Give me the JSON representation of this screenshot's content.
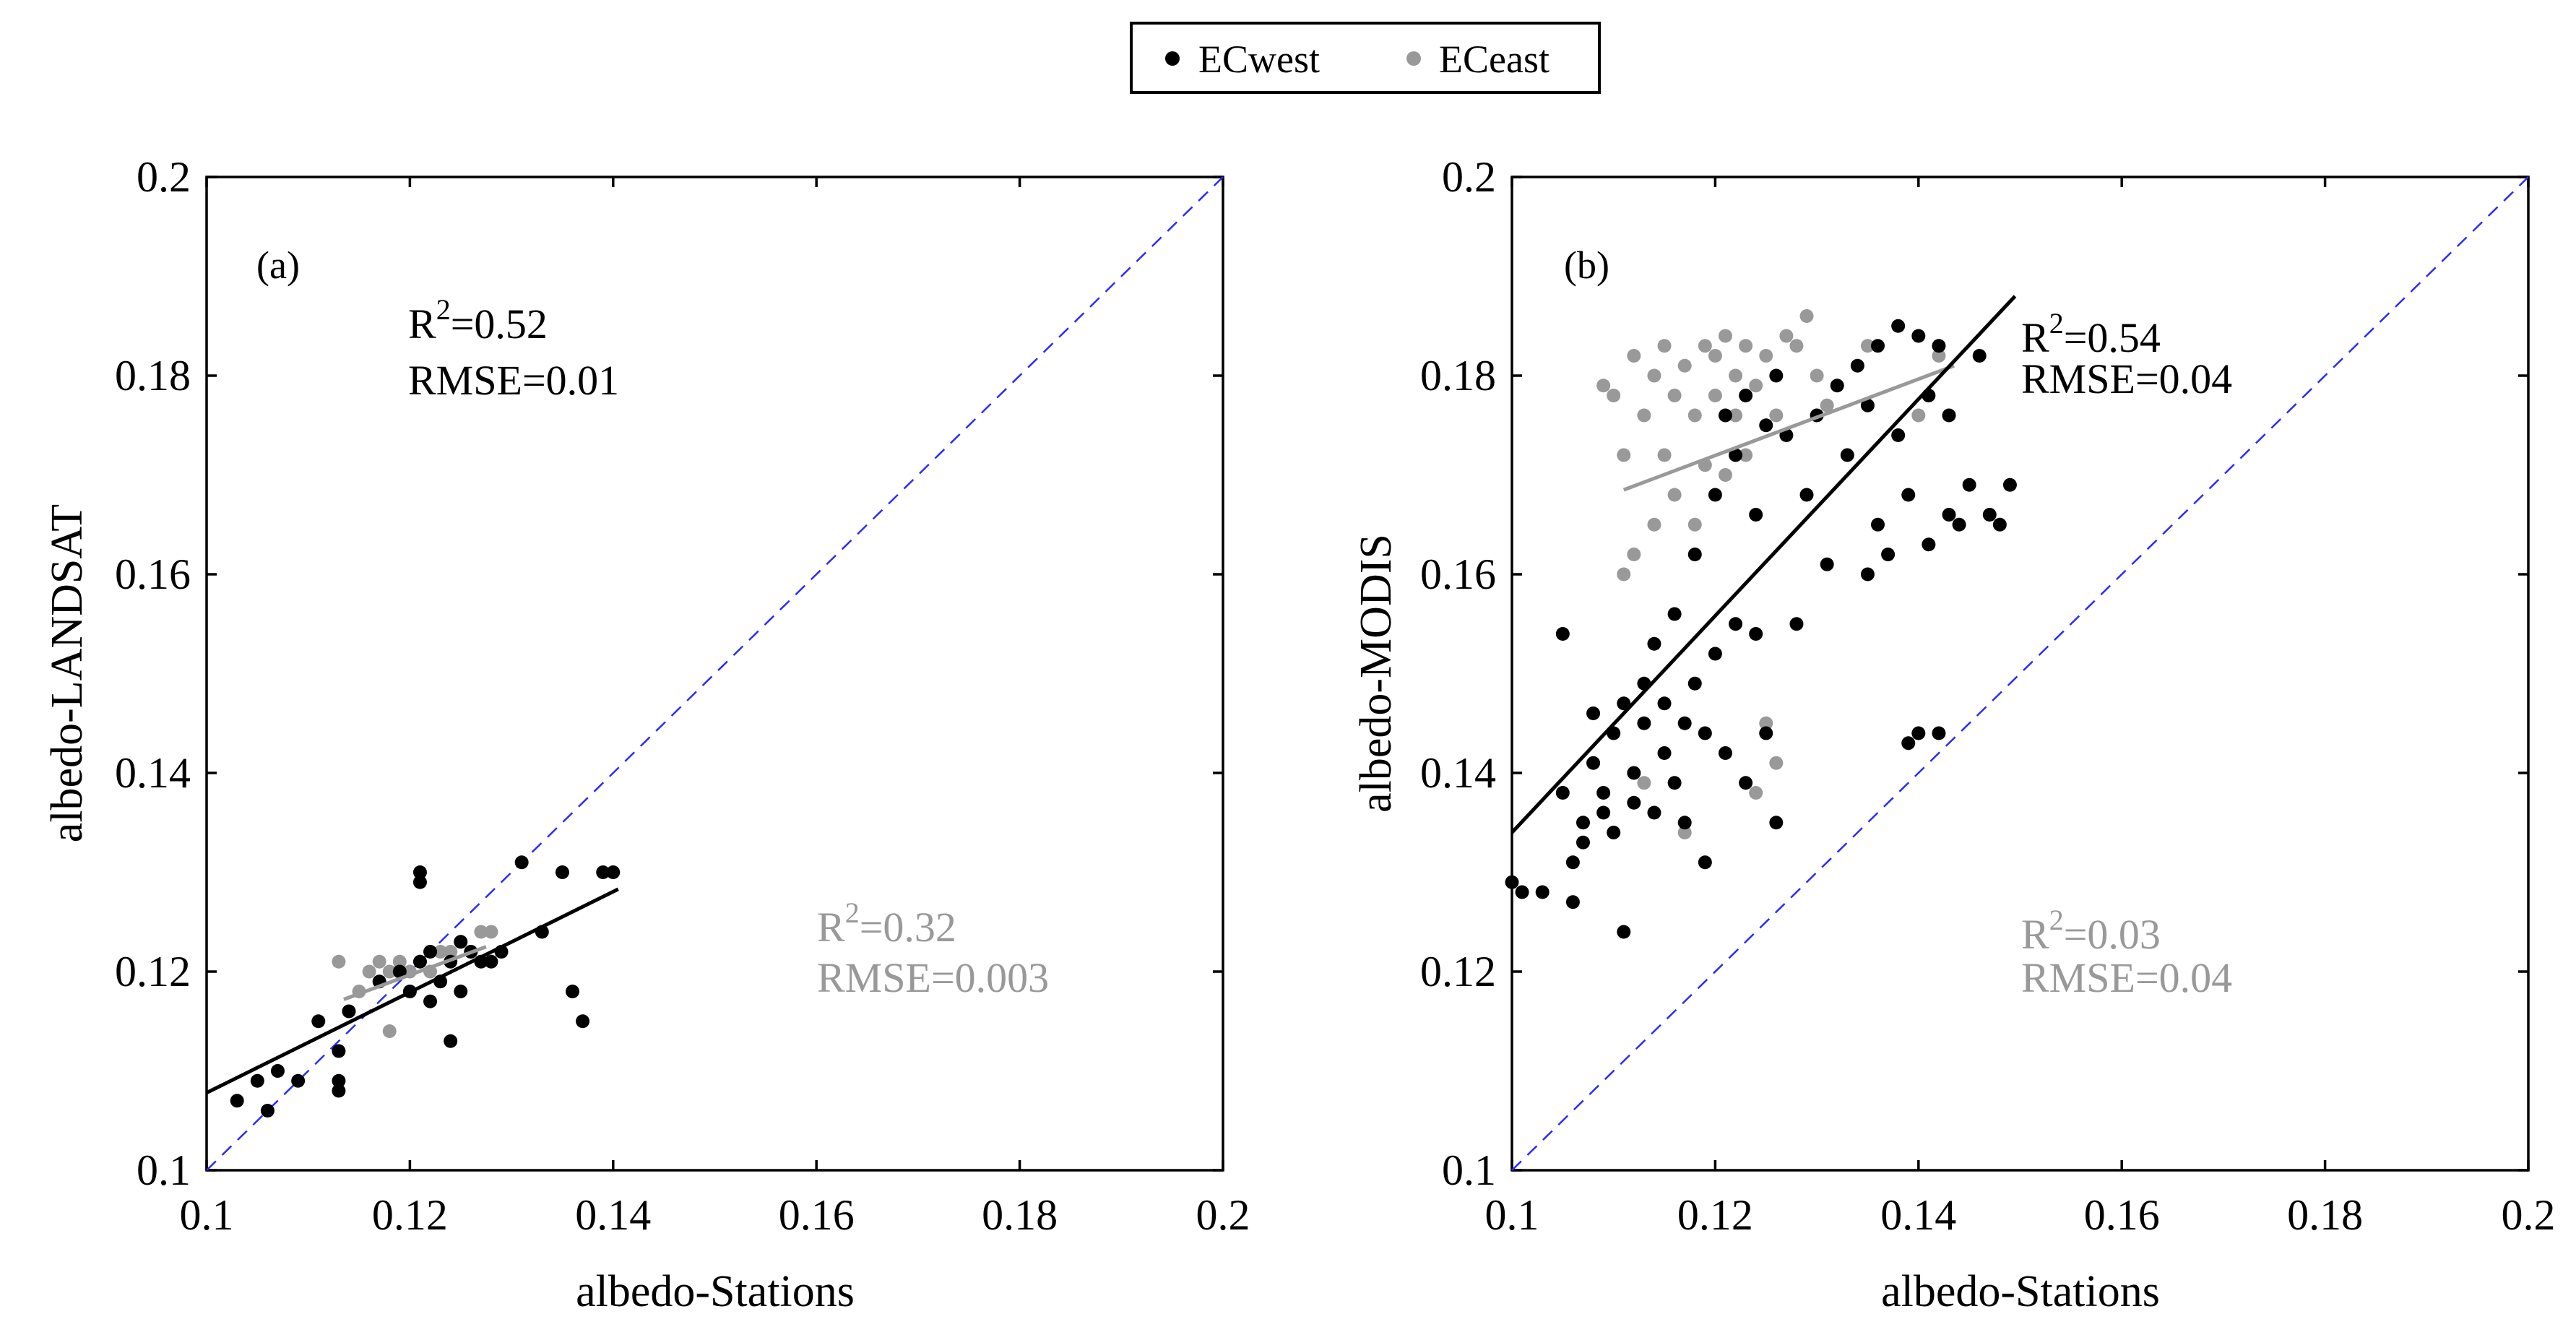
{
  "colors": {
    "ecwest": "#000000",
    "eceast": "#999999",
    "one_to_one": "#2b2bff"
  },
  "legend": {
    "items": [
      {
        "label": "ECwest",
        "color": "#000000"
      },
      {
        "label": "ECeast",
        "color": "#999999"
      }
    ],
    "placement": "top-center"
  },
  "chart_data": [
    {
      "type": "scatter",
      "panel": "(a)",
      "xlabel": "albedo-Stations",
      "ylabel": "albedo-LANDSAT",
      "xlim": [
        0.1,
        0.2
      ],
      "ylim": [
        0.1,
        0.2
      ],
      "xticks": [
        "0.1",
        "0.12",
        "0.14",
        "0.16",
        "0.18",
        "0.2"
      ],
      "yticks": [
        "0.1",
        "0.12",
        "0.14",
        "0.16",
        "0.18",
        "0.2"
      ],
      "reference_line": "1:1",
      "series": [
        {
          "name": "ECwest",
          "points": [
            [
              0.103,
              0.107
            ],
            [
              0.105,
              0.109
            ],
            [
              0.106,
              0.106
            ],
            [
              0.107,
              0.11
            ],
            [
              0.109,
              0.109
            ],
            [
              0.111,
              0.115
            ],
            [
              0.113,
              0.108
            ],
            [
              0.113,
              0.109
            ],
            [
              0.113,
              0.112
            ],
            [
              0.114,
              0.116
            ],
            [
              0.117,
              0.119
            ],
            [
              0.119,
              0.12
            ],
            [
              0.12,
              0.118
            ],
            [
              0.121,
              0.129
            ],
            [
              0.121,
              0.13
            ],
            [
              0.121,
              0.121
            ],
            [
              0.122,
              0.122
            ],
            [
              0.122,
              0.117
            ],
            [
              0.123,
              0.119
            ],
            [
              0.124,
              0.113
            ],
            [
              0.124,
              0.121
            ],
            [
              0.125,
              0.118
            ],
            [
              0.125,
              0.123
            ],
            [
              0.126,
              0.122
            ],
            [
              0.127,
              0.121
            ],
            [
              0.128,
              0.121
            ],
            [
              0.129,
              0.122
            ],
            [
              0.131,
              0.131
            ],
            [
              0.133,
              0.124
            ],
            [
              0.135,
              0.13
            ],
            [
              0.136,
              0.118
            ],
            [
              0.137,
              0.115
            ],
            [
              0.139,
              0.13
            ],
            [
              0.14,
              0.13
            ]
          ],
          "fit": {
            "from": [
              0.1,
              0.1078
            ],
            "to": [
              0.1405,
              0.1283
            ],
            "r2": "R2=0.52",
            "rmse": "RMSE=0.01"
          }
        },
        {
          "name": "ECeast",
          "points": [
            [
              0.113,
              0.121
            ],
            [
              0.114,
              0.116
            ],
            [
              0.115,
              0.118
            ],
            [
              0.116,
              0.12
            ],
            [
              0.117,
              0.121
            ],
            [
              0.118,
              0.12
            ],
            [
              0.118,
              0.114
            ],
            [
              0.119,
              0.121
            ],
            [
              0.12,
              0.12
            ],
            [
              0.121,
              0.121
            ],
            [
              0.122,
              0.12
            ],
            [
              0.123,
              0.122
            ],
            [
              0.124,
              0.122
            ],
            [
              0.125,
              0.123
            ],
            [
              0.126,
              0.122
            ],
            [
              0.127,
              0.124
            ],
            [
              0.128,
              0.124
            ]
          ],
          "fit": {
            "from": [
              0.1135,
              0.1172
            ],
            "to": [
              0.1275,
              0.1225
            ],
            "r2": "R2=0.32",
            "rmse": "RMSE=0.003"
          }
        }
      ]
    },
    {
      "type": "scatter",
      "panel": "(b)",
      "xlabel": "albedo-Stations",
      "ylabel": "albedo-MODIS",
      "xlim": [
        0.1,
        0.2
      ],
      "ylim": [
        0.1,
        0.2
      ],
      "xticks": [
        "0.1",
        "0.12",
        "0.14",
        "0.16",
        "0.18",
        "0.2"
      ],
      "yticks": [
        "0.1",
        "0.12",
        "0.14",
        "0.16",
        "0.18",
        "0.2"
      ],
      "reference_line": "1:1",
      "series": [
        {
          "name": "ECwest",
          "points": [
            [
              0.1,
              0.129
            ],
            [
              0.101,
              0.128
            ],
            [
              0.103,
              0.128
            ],
            [
              0.105,
              0.138
            ],
            [
              0.105,
              0.154
            ],
            [
              0.106,
              0.131
            ],
            [
              0.106,
              0.127
            ],
            [
              0.107,
              0.133
            ],
            [
              0.107,
              0.135
            ],
            [
              0.108,
              0.141
            ],
            [
              0.108,
              0.146
            ],
            [
              0.109,
              0.136
            ],
            [
              0.109,
              0.138
            ],
            [
              0.11,
              0.134
            ],
            [
              0.11,
              0.144
            ],
            [
              0.111,
              0.147
            ],
            [
              0.111,
              0.124
            ],
            [
              0.112,
              0.137
            ],
            [
              0.112,
              0.14
            ],
            [
              0.113,
              0.145
            ],
            [
              0.113,
              0.149
            ],
            [
              0.114,
              0.136
            ],
            [
              0.114,
              0.153
            ],
            [
              0.115,
              0.142
            ],
            [
              0.115,
              0.147
            ],
            [
              0.116,
              0.139
            ],
            [
              0.116,
              0.156
            ],
            [
              0.117,
              0.145
            ],
            [
              0.117,
              0.135
            ],
            [
              0.118,
              0.149
            ],
            [
              0.118,
              0.162
            ],
            [
              0.119,
              0.131
            ],
            [
              0.119,
              0.144
            ],
            [
              0.12,
              0.152
            ],
            [
              0.12,
              0.168
            ],
            [
              0.121,
              0.176
            ],
            [
              0.121,
              0.142
            ],
            [
              0.122,
              0.155
            ],
            [
              0.122,
              0.172
            ],
            [
              0.123,
              0.178
            ],
            [
              0.123,
              0.139
            ],
            [
              0.124,
              0.154
            ],
            [
              0.124,
              0.166
            ],
            [
              0.125,
              0.175
            ],
            [
              0.125,
              0.144
            ],
            [
              0.126,
              0.135
            ],
            [
              0.126,
              0.18
            ],
            [
              0.127,
              0.174
            ],
            [
              0.128,
              0.155
            ],
            [
              0.129,
              0.168
            ],
            [
              0.13,
              0.176
            ],
            [
              0.131,
              0.161
            ],
            [
              0.132,
              0.179
            ],
            [
              0.133,
              0.172
            ],
            [
              0.134,
              0.181
            ],
            [
              0.135,
              0.177
            ],
            [
              0.135,
              0.16
            ],
            [
              0.136,
              0.183
            ],
            [
              0.136,
              0.165
            ],
            [
              0.137,
              0.162
            ],
            [
              0.138,
              0.185
            ],
            [
              0.138,
              0.174
            ],
            [
              0.139,
              0.143
            ],
            [
              0.139,
              0.168
            ],
            [
              0.14,
              0.184
            ],
            [
              0.14,
              0.144
            ],
            [
              0.141,
              0.178
            ],
            [
              0.141,
              0.163
            ],
            [
              0.142,
              0.183
            ],
            [
              0.142,
              0.144
            ],
            [
              0.143,
              0.176
            ],
            [
              0.143,
              0.166
            ],
            [
              0.144,
              0.165
            ],
            [
              0.145,
              0.169
            ],
            [
              0.146,
              0.182
            ],
            [
              0.147,
              0.166
            ],
            [
              0.148,
              0.165
            ],
            [
              0.149,
              0.169
            ]
          ],
          "fit": {
            "from": [
              0.1,
              0.134
            ],
            "to": [
              0.1495,
              0.188
            ],
            "r2": "R2=0.54",
            "rmse": "RMSE=0.04"
          }
        },
        {
          "name": "ECeast",
          "points": [
            [
              0.109,
              0.179
            ],
            [
              0.11,
              0.178
            ],
            [
              0.111,
              0.172
            ],
            [
              0.111,
              0.16
            ],
            [
              0.112,
              0.182
            ],
            [
              0.112,
              0.162
            ],
            [
              0.113,
              0.176
            ],
            [
              0.113,
              0.139
            ],
            [
              0.114,
              0.18
            ],
            [
              0.114,
              0.165
            ],
            [
              0.115,
              0.183
            ],
            [
              0.115,
              0.172
            ],
            [
              0.116,
              0.178
            ],
            [
              0.116,
              0.168
            ],
            [
              0.117,
              0.181
            ],
            [
              0.117,
              0.134
            ],
            [
              0.118,
              0.176
            ],
            [
              0.118,
              0.165
            ],
            [
              0.119,
              0.183
            ],
            [
              0.119,
              0.171
            ],
            [
              0.12,
              0.178
            ],
            [
              0.12,
              0.182
            ],
            [
              0.121,
              0.184
            ],
            [
              0.121,
              0.17
            ],
            [
              0.122,
              0.176
            ],
            [
              0.122,
              0.18
            ],
            [
              0.123,
              0.183
            ],
            [
              0.123,
              0.172
            ],
            [
              0.124,
              0.179
            ],
            [
              0.124,
              0.138
            ],
            [
              0.125,
              0.182
            ],
            [
              0.125,
              0.145
            ],
            [
              0.126,
              0.176
            ],
            [
              0.126,
              0.141
            ],
            [
              0.127,
              0.184
            ],
            [
              0.128,
              0.183
            ],
            [
              0.129,
              0.186
            ],
            [
              0.13,
              0.18
            ],
            [
              0.131,
              0.177
            ],
            [
              0.135,
              0.183
            ],
            [
              0.14,
              0.176
            ],
            [
              0.142,
              0.182
            ]
          ],
          "fit": {
            "from": [
              0.111,
              0.1685
            ],
            "to": [
              0.1435,
              0.181
            ],
            "r2": "R2=0.03",
            "rmse": "RMSE=0.04"
          }
        }
      ]
    }
  ]
}
